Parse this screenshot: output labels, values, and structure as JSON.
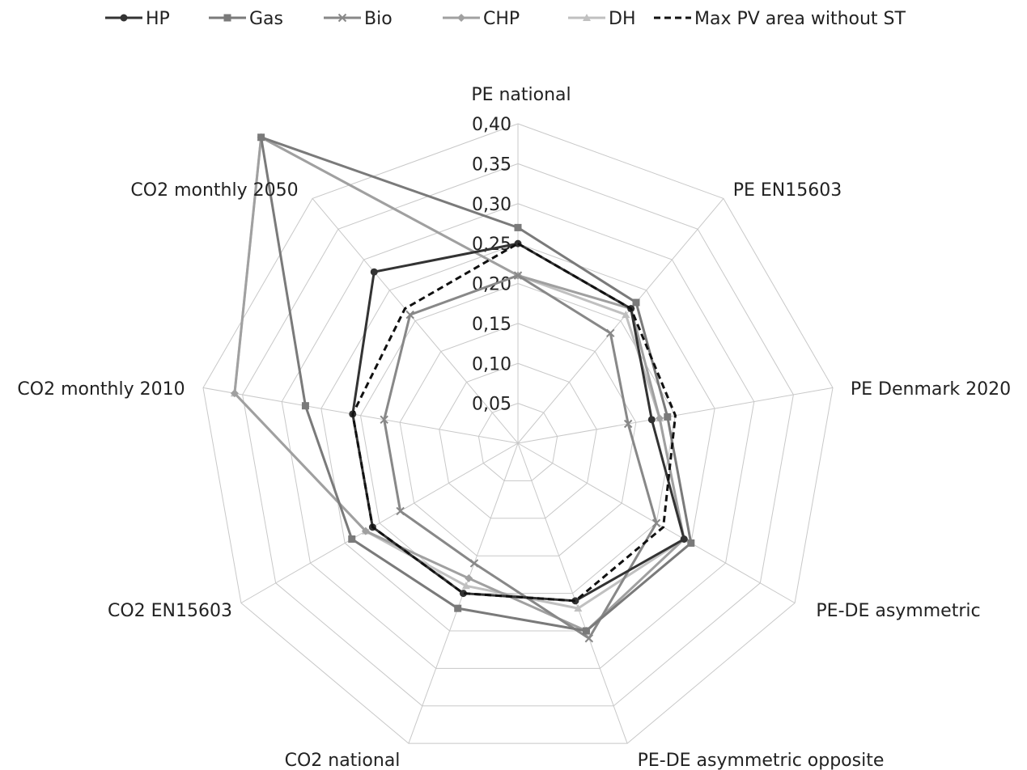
{
  "chart_data": {
    "type": "radar",
    "categories": [
      "PE national",
      "PE EN15603",
      "PE Denmark 2020",
      "PE-DE asymmetric",
      "PE-DE asymmetric opposite",
      "CO2 national",
      "CO2 EN15603",
      "CO2 monthly 2010",
      "CO2 monthly 2050"
    ],
    "radial_ticks": [
      "0,05",
      "0,10",
      "0,15",
      "0,20",
      "0,25",
      "0,30",
      "0,35",
      "0,40"
    ],
    "rlim": [
      0,
      0.4
    ],
    "grid": true,
    "legend_position": "top",
    "series": [
      {
        "name": "HP",
        "color": "#333333",
        "marker": "circle",
        "dash": "solid",
        "values": [
          0.25,
          0.22,
          0.17,
          0.24,
          0.21,
          0.2,
          0.21,
          0.21,
          0.28
        ]
      },
      {
        "name": "Gas",
        "color": "#7a7a7a",
        "marker": "square",
        "dash": "solid",
        "values": [
          0.27,
          0.23,
          0.19,
          0.25,
          0.25,
          0.22,
          0.24,
          0.27,
          0.5
        ]
      },
      {
        "name": "Bio",
        "color": "#888888",
        "marker": "x",
        "dash": "solid",
        "values": [
          0.21,
          0.18,
          0.14,
          0.2,
          0.26,
          0.16,
          0.17,
          0.17,
          0.21
        ]
      },
      {
        "name": "CHP",
        "color": "#a0a0a0",
        "marker": "diamond",
        "dash": "solid",
        "values": [
          0.21,
          0.22,
          0.18,
          0.24,
          0.25,
          0.18,
          0.22,
          0.36,
          0.5
        ]
      },
      {
        "name": "DH",
        "color": "#c0c0c0",
        "marker": "triangle",
        "dash": "solid",
        "values": [
          0.21,
          0.21,
          0.18,
          0.24,
          0.22,
          0.19,
          0.22,
          0.36,
          0.5
        ]
      },
      {
        "name": "Max PV area without ST",
        "color": "#111111",
        "marker": "none",
        "dash": "dashed",
        "values": [
          0.25,
          0.22,
          0.2,
          0.21,
          0.21,
          0.2,
          0.21,
          0.21,
          0.22
        ]
      }
    ]
  }
}
